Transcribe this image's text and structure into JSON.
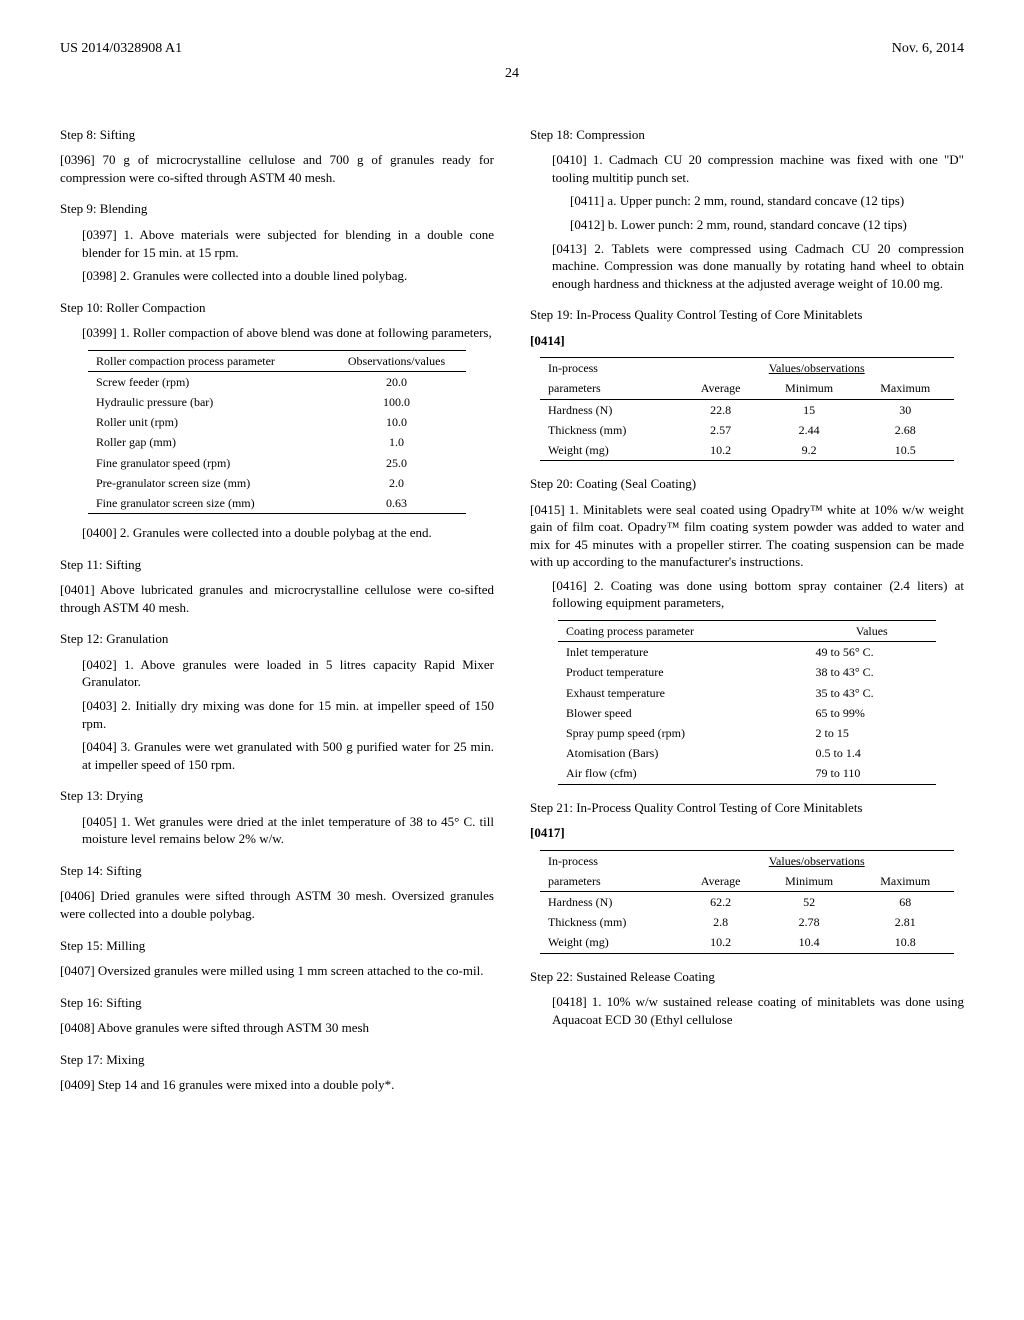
{
  "header": {
    "left": "US 2014/0328908 A1",
    "right": "Nov. 6, 2014"
  },
  "page": "24",
  "left": {
    "step8": {
      "title": "Step 8: Sifting",
      "p0396": "[0396]   70 g of microcrystalline cellulose and 700 g of granules ready for compression were co-sifted through ASTM 40 mesh."
    },
    "step9": {
      "title": "Step 9: Blending",
      "p0397": "[0397]   1. Above materials were subjected for blending in a double cone blender for 15 min. at 15 rpm.",
      "p0398": "[0398]   2. Granules were collected into a double lined polybag."
    },
    "step10": {
      "title": "Step 10: Roller Compaction",
      "p0399": "[0399]   1. Roller compaction of above blend was done at following parameters,",
      "table": {
        "h1": "Roller compaction process parameter",
        "h2": "Observations/values",
        "rows": [
          [
            "Screw feeder (rpm)",
            "20.0"
          ],
          [
            "Hydraulic pressure (bar)",
            "100.0"
          ],
          [
            "Roller unit (rpm)",
            "10.0"
          ],
          [
            "Roller gap (mm)",
            "1.0"
          ],
          [
            "Fine granulator speed (rpm)",
            "25.0"
          ],
          [
            "Pre-granulator screen size (mm)",
            "2.0"
          ],
          [
            "Fine granulator screen size (mm)",
            "0.63"
          ]
        ]
      },
      "p0400": "[0400]   2. Granules were collected into a double polybag at the end."
    },
    "step11": {
      "title": "Step 11: Sifting",
      "p0401": "[0401]   Above lubricated granules and microcrystalline cellulose were co-sifted through ASTM 40 mesh."
    },
    "step12": {
      "title": "Step 12: Granulation",
      "p0402": "[0402]   1. Above granules were loaded in 5 litres capacity Rapid Mixer Granulator.",
      "p0403": "[0403]   2. Initially dry mixing was done for 15 min. at impeller speed of 150 rpm.",
      "p0404": "[0404]   3. Granules were wet granulated with 500 g purified water for 25 min. at impeller speed of 150 rpm."
    },
    "step13": {
      "title": "Step 13: Drying",
      "p0405": "[0405]   1. Wet granules were dried at the inlet temperature of 38 to 45° C. till moisture level remains below 2% w/w."
    },
    "step14": {
      "title": "Step 14: Sifting",
      "p0406": "[0406]   Dried granules were sifted through ASTM 30 mesh. Oversized granules were collected into a double polybag."
    },
    "step15": {
      "title": "Step 15: Milling",
      "p0407": "[0407]   Oversized granules were milled using 1 mm screen attached to the co-mil."
    },
    "step16": {
      "title": "Step 16: Sifting",
      "p0408": "[0408]   Above granules were sifted through ASTM 30 mesh"
    },
    "step17": {
      "title": "Step 17: Mixing",
      "p0409": "[0409]   Step 14 and 16 granules were mixed into a double poly*."
    }
  },
  "right": {
    "step18": {
      "title": "Step 18: Compression",
      "p0410": "[0410]   1. Cadmach CU 20 compression machine was fixed with one \"D\" tooling multitip punch set.",
      "p0411": "[0411]   a. Upper punch: 2 mm, round, standard concave (12 tips)",
      "p0412": "[0412]   b. Lower punch: 2 mm, round, standard concave (12 tips)",
      "p0413": "[0413]   2. Tablets were compressed using Cadmach CU 20 compression machine. Compression was done manually by rotating hand wheel to obtain enough hardness and thickness at the adjusted average weight of 10.00 mg."
    },
    "step19": {
      "title": "Step 19: In-Process Quality Control Testing of Core Minitablets",
      "p0414": "[0414]",
      "table": {
        "h1": "In-process",
        "h1b": "parameters",
        "vals": "Values/observations",
        "c1": "Average",
        "c2": "Minimum",
        "c3": "Maximum",
        "rows": [
          [
            "Hardness (N)",
            "22.8",
            "15",
            "30"
          ],
          [
            "Thickness (mm)",
            "2.57",
            "2.44",
            "2.68"
          ],
          [
            "Weight (mg)",
            "10.2",
            "9.2",
            "10.5"
          ]
        ]
      }
    },
    "step20": {
      "title": "Step 20: Coating (Seal Coating)",
      "p0415": "[0415]   1. Minitablets were seal coated using Opadry™ white at 10% w/w weight gain of film coat. Opadry™ film coating system powder was added to water and mix for 45 minutes with a propeller stirrer. The coating suspension can be made with up according to the manufacturer's instructions.",
      "p0416": "[0416]   2. Coating was done using bottom spray container (2.4 liters) at following equipment parameters,",
      "table": {
        "h1": "Coating process parameter",
        "h2": "Values",
        "rows": [
          [
            "Inlet temperature",
            "49 to 56° C."
          ],
          [
            "Product temperature",
            "38 to 43° C."
          ],
          [
            "Exhaust temperature",
            "35 to 43° C."
          ],
          [
            "Blower speed",
            "65 to 99%"
          ],
          [
            "Spray pump speed (rpm)",
            "2 to 15"
          ],
          [
            "Atomisation (Bars)",
            "0.5 to 1.4"
          ],
          [
            "Air flow (cfm)",
            "79 to 110"
          ]
        ]
      }
    },
    "step21": {
      "title": "Step 21: In-Process Quality Control Testing of Core Minitablets",
      "p0417": "[0417]",
      "table": {
        "h1": "In-process",
        "h1b": "parameters",
        "vals": "Values/observations",
        "c1": "Average",
        "c2": "Minimum",
        "c3": "Maximum",
        "rows": [
          [
            "Hardness (N)",
            "62.2",
            "52",
            "68"
          ],
          [
            "Thickness (mm)",
            "2.8",
            "2.78",
            "2.81"
          ],
          [
            "Weight (mg)",
            "10.2",
            "10.4",
            "10.8"
          ]
        ]
      }
    },
    "step22": {
      "title": "Step 22: Sustained Release Coating",
      "p0418": "[0418]   1. 10% w/w sustained release coating of minitablets was done using Aquacoat ECD 30 (Ethyl cellulose"
    }
  }
}
